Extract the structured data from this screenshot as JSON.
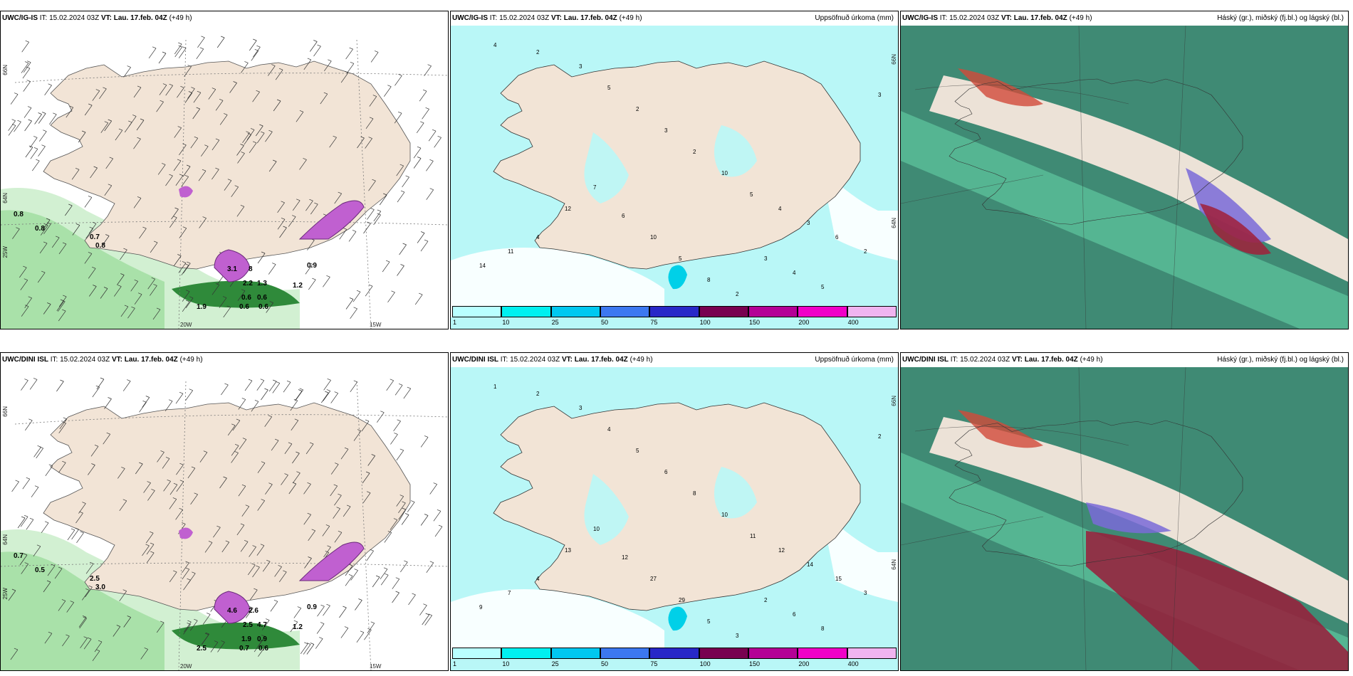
{
  "panels": [
    {
      "model": "UWC/IG-IS",
      "it": "IT: 15.02.2024 03Z",
      "vt_label": "VT:",
      "vt": "Lau. 17.feb. 04Z",
      "lead": "(+49 h)",
      "title": "",
      "kind": "wind",
      "values": [
        "0.8",
        "0.8",
        "0.7",
        "0.8",
        "3.1",
        "8",
        "2.2",
        "1.3",
        "0.6",
        "0.6",
        "0.6",
        "0.6",
        "1.2",
        "0.9",
        "1.9"
      ]
    },
    {
      "model": "UWC/IG-IS",
      "it": "IT: 15.02.2024 03Z",
      "vt_label": "VT:",
      "vt": "Lau. 17.feb. 04Z",
      "lead": "(+49 h)",
      "title": "Uppsöfnuð úrkoma (mm)",
      "kind": "precip",
      "values": [
        "4",
        "2",
        "3",
        "5",
        "2",
        "3",
        "2",
        "10",
        "5",
        "4",
        "3",
        "6",
        "2",
        "3",
        "4",
        "11",
        "14",
        "12",
        "7",
        "6",
        "10",
        "5",
        "8",
        "2",
        "3",
        "4",
        "5"
      ]
    },
    {
      "model": "UWC/IG-IS",
      "it": "IT: 15.02.2024 03Z",
      "vt_label": "VT:",
      "vt": "Lau. 17.feb. 04Z",
      "lead": "(+49 h)",
      "title": "Háský (gr.), miðský (fj.bl.) og lágský (bl.)",
      "kind": "cloud"
    },
    {
      "model": "UWC/DINI ISL",
      "it": "IT: 15.02.2024 03Z",
      "vt_label": "VT:",
      "vt": "Lau. 17.feb. 04Z",
      "lead": "(+49 h)",
      "title": "",
      "kind": "wind",
      "values": [
        "0.7",
        "0.5",
        "2.5",
        "3.0",
        "4.6",
        "2.6",
        "2.5",
        "4.7",
        "1.9",
        "0.9",
        "0.7",
        "0.6",
        "1.2",
        "0.9",
        "2.5"
      ]
    },
    {
      "model": "UWC/DINI ISL",
      "it": "IT: 15.02.2024 03Z",
      "vt_label": "VT:",
      "vt": "Lau. 17.feb. 04Z",
      "lead": "(+49 h)",
      "title": "Uppsöfnuð úrkoma (mm)",
      "kind": "precip",
      "values": [
        "1",
        "2",
        "3",
        "4",
        "5",
        "6",
        "8",
        "10",
        "11",
        "12",
        "14",
        "15",
        "3",
        "2",
        "4",
        "7",
        "9",
        "13",
        "10",
        "12",
        "27",
        "29",
        "5",
        "3",
        "2",
        "6",
        "8"
      ]
    },
    {
      "model": "UWC/DINI ISL",
      "it": "IT: 15.02.2024 03Z",
      "vt_label": "VT:",
      "vt": "Lau. 17.feb. 04Z",
      "lead": "(+49 h)",
      "title": "Háský (gr.), miðský (fj.bl.) og lágský (bl.)",
      "kind": "cloud"
    }
  ],
  "axis_labels": {
    "lat66": "66N",
    "lat64": "64N",
    "lon25": "25W",
    "lon20": "20W",
    "lon15": "15W"
  },
  "colorbar": {
    "ticks": [
      "1",
      "10",
      "25",
      "50",
      "75",
      "100",
      "150",
      "200",
      "400"
    ],
    "colors": [
      "#b9ffff",
      "#00f0f0",
      "#00c8f0",
      "#3c78f0",
      "#2828c8",
      "#780050",
      "#b40096",
      "#f000c8",
      "#f0b4f0"
    ]
  },
  "colors": {
    "land": "#f2e4d6",
    "sea_wind": "#ffffff",
    "precip_bg": "#b9f7f7",
    "cloud_bg": "#3f8a74",
    "precip_green": "#7ad67a"
  }
}
